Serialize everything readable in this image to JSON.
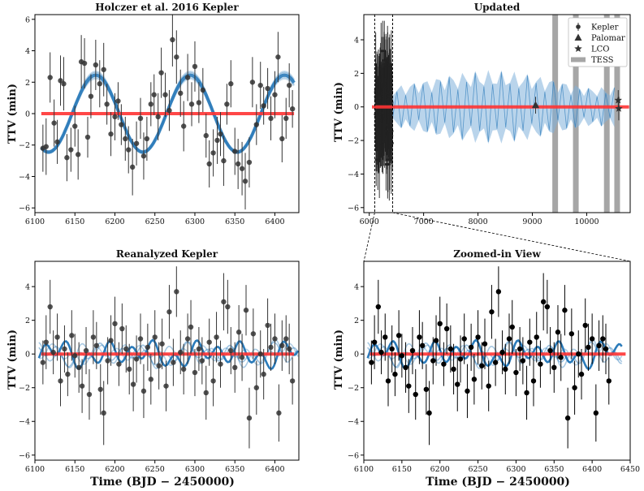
{
  "figure": {
    "x_label": "Time (BJD − 2450000)",
    "y_label": "TTV (min)"
  },
  "chart_data": [
    {
      "id": "p1",
      "type": "scatter",
      "title": "Holczer et al. 2016 Kepler",
      "xlim": [
        6100,
        6430
      ],
      "ylim": [
        -6.3,
        6.3
      ],
      "xticks": [
        6100,
        6150,
        6200,
        6250,
        6300,
        6350,
        6400
      ],
      "yticks": [
        -6,
        -4,
        -2,
        0,
        2,
        4,
        6
      ],
      "model_flat": 0,
      "model_sine": {
        "amplitude": 2.45,
        "period": 118,
        "peak": 6176
      },
      "series": [
        {
          "name": "Kepler",
          "color": "#333333",
          "x": [
            6110,
            6114,
            6119,
            6124,
            6128,
            6132,
            6136,
            6140,
            6145,
            6150,
            6154,
            6158,
            6162,
            6166,
            6170,
            6176,
            6181,
            6186,
            6190,
            6195,
            6200,
            6204,
            6208,
            6213,
            6217,
            6222,
            6227,
            6232,
            6236,
            6240,
            6245,
            6249,
            6254,
            6258,
            6263,
            6268,
            6272,
            6277,
            6282,
            6286,
            6291,
            6296,
            6300,
            6305,
            6310,
            6314,
            6318,
            6323,
            6328,
            6332,
            6336,
            6340,
            6345,
            6350,
            6354,
            6359,
            6363,
            6368,
            6372,
            6377,
            6382,
            6386,
            6391,
            6395,
            6400,
            6404,
            6409,
            6414,
            6418,
            6422
          ],
          "y": [
            -2.2,
            -2.1,
            2.3,
            -0.6,
            -1.8,
            2.1,
            1.9,
            -2.8,
            -2.3,
            -0.8,
            -2.6,
            3.3,
            3.2,
            -1.5,
            1.1,
            3.1,
            1.9,
            2.8,
            0.6,
            -1.3,
            -0.2,
            0.8,
            -0.7,
            -1.6,
            -2.3,
            -3.4,
            -1.9,
            -0.3,
            -2.7,
            -1.6,
            0.6,
            1.2,
            -0.2,
            2.6,
            1.2,
            0.2,
            4.7,
            3.6,
            1.3,
            -0.8,
            2.3,
            0.6,
            3.0,
            0.7,
            1.5,
            -1.4,
            -3.2,
            -2.5,
            -1.7,
            -1.3,
            -3.0,
            0.6,
            1.9,
            -2.4,
            -3.2,
            -3.5,
            -4.3,
            -3.1,
            2.0,
            -0.7,
            1.8,
            0.5,
            1.6,
            -0.3,
            1.2,
            3.6,
            -1.6,
            -0.3,
            1.8,
            0.3
          ],
          "err": [
            1.5,
            1.8,
            1.6,
            1.5,
            1.4,
            1.6,
            1.7,
            1.5,
            1.4,
            1.3,
            1.6,
            1.7,
            1.6,
            1.3,
            1.4,
            1.6,
            1.5,
            1.7,
            1.3,
            1.4,
            1.5,
            1.2,
            1.3,
            1.4,
            1.5,
            1.8,
            1.4,
            1.3,
            1.5,
            1.4,
            1.4,
            1.3,
            1.5,
            1.6,
            1.4,
            1.3,
            1.7,
            1.7,
            1.5,
            1.6,
            1.5,
            1.4,
            1.6,
            1.3,
            1.4,
            1.4,
            1.5,
            1.5,
            1.5,
            1.4,
            1.6,
            1.3,
            1.5,
            1.5,
            1.6,
            1.7,
            1.8,
            1.6,
            1.6,
            1.3,
            1.5,
            1.2,
            1.3,
            1.4,
            1.5,
            1.6,
            1.5,
            1.3,
            1.4,
            1.2
          ]
        }
      ]
    },
    {
      "id": "p2",
      "type": "scatter",
      "title": "Updated",
      "xlim": [
        5900,
        10800
      ],
      "ylim": [
        -6.3,
        5.5
      ],
      "xticks": [
        6000,
        7000,
        8000,
        9000,
        10000
      ],
      "yticks": [
        -6,
        -4,
        -2,
        0,
        2,
        4
      ],
      "kepler_window": [
        6100,
        6430
      ],
      "tess_epochs": [
        9420,
        9800,
        10370,
        10560
      ],
      "model_flat": 0,
      "model_envelope": {
        "start": 6430,
        "end": 10560,
        "amplitude": 2.2
      },
      "series": [
        {
          "name": "Palomar",
          "color": "#333333",
          "x": [
            9060
          ],
          "y": [
            0.1
          ],
          "err": [
            0.5
          ]
        },
        {
          "name": "LCO",
          "color": "#333333",
          "x": [
            10580,
            10590
          ],
          "y": [
            0.4,
            -0.1
          ],
          "err": [
            0.6,
            0.7
          ]
        }
      ],
      "legend": {
        "position": "top-right",
        "entries": [
          "Kepler",
          "Palomar",
          "LCO",
          "TESS"
        ]
      }
    },
    {
      "id": "p3",
      "type": "scatter",
      "title": "Reanalyzed Kepler",
      "xlim": [
        6100,
        6430
      ],
      "ylim": [
        -6.3,
        5.5
      ],
      "xticks": [
        6100,
        6150,
        6200,
        6250,
        6300,
        6350,
        6400
      ],
      "yticks": [
        -6,
        -4,
        -2,
        0,
        2,
        4
      ],
      "model_flat": 0,
      "series": [
        {
          "name": "Kepler",
          "color": "#333333",
          "x": [
            6110,
            6114,
            6119,
            6123,
            6128,
            6132,
            6137,
            6141,
            6146,
            6150,
            6155,
            6159,
            6164,
            6168,
            6173,
            6177,
            6182,
            6186,
            6191,
            6195,
            6200,
            6205,
            6209,
            6214,
            6218,
            6223,
            6227,
            6232,
            6236,
            6241,
            6245,
            6250,
            6255,
            6259,
            6264,
            6268,
            6273,
            6277,
            6282,
            6286,
            6291,
            6295,
            6300,
            6305,
            6309,
            6314,
            6318,
            6323,
            6327,
            6332,
            6336,
            6341,
            6345,
            6350,
            6355,
            6359,
            6364,
            6368,
            6373,
            6377,
            6382,
            6386,
            6391,
            6395,
            6400,
            6405,
            6409,
            6414,
            6418,
            6422
          ],
          "y": [
            -0.5,
            0.7,
            2.8,
            0.1,
            1.0,
            -1.6,
            0.3,
            -1.2,
            1.1,
            -0.1,
            -0.8,
            -1.9,
            0.2,
            -2.4,
            1.0,
            0.5,
            -2.1,
            -3.5,
            -0.4,
            0.8,
            1.8,
            -0.6,
            1.5,
            0.3,
            -0.9,
            -1.8,
            -0.3,
            0.9,
            -2.2,
            0.4,
            -1.5,
            1.0,
            -0.7,
            0.6,
            -1.9,
            2.5,
            -0.5,
            3.7,
            0.1,
            -0.9,
            0.9,
            1.6,
            -1.1,
            0.3,
            -0.4,
            -2.3,
            0.7,
            -1.6,
            1.0,
            -0.6,
            3.1,
            2.8,
            0.2,
            -0.8,
            1.3,
            -0.2,
            2.6,
            -3.8,
            1.2,
            -2.0,
            0.0,
            -1.2,
            1.7,
            0.4,
            0.9,
            -3.5,
            0.5,
            0.9,
            0.3,
            -1.6
          ],
          "err": [
            1.3,
            1.6,
            1.6,
            1.3,
            1.4,
            1.5,
            1.4,
            1.3,
            1.5,
            1.3,
            1.5,
            1.6,
            1.4,
            1.5,
            1.6,
            1.4,
            1.5,
            1.9,
            1.4,
            1.5,
            1.6,
            1.3,
            1.5,
            1.4,
            1.5,
            1.6,
            1.4,
            1.5,
            1.6,
            1.4,
            1.5,
            1.6,
            1.4,
            1.5,
            1.5,
            1.6,
            1.4,
            1.5,
            1.3,
            1.5,
            1.5,
            1.6,
            1.4,
            1.3,
            1.4,
            1.6,
            1.4,
            1.5,
            1.5,
            1.4,
            1.7,
            1.6,
            1.4,
            1.5,
            1.6,
            1.4,
            1.5,
            1.8,
            1.5,
            1.6,
            1.4,
            1.5,
            1.6,
            1.4,
            1.5,
            1.7,
            1.5,
            1.4,
            1.5,
            1.4
          ]
        }
      ]
    },
    {
      "id": "p4",
      "type": "scatter",
      "title": "Zoomed-in View",
      "xlim": [
        6100,
        6450
      ],
      "ylim": [
        -6.3,
        5.5
      ],
      "xticks": [
        6100,
        6150,
        6200,
        6250,
        6300,
        6350,
        6400,
        6450
      ],
      "yticks": [
        -6,
        -4,
        -2,
        0,
        2,
        4
      ],
      "model_flat": 0,
      "series": [
        {
          "name": "Kepler",
          "color": "#000000",
          "source": "p3"
        }
      ]
    }
  ]
}
